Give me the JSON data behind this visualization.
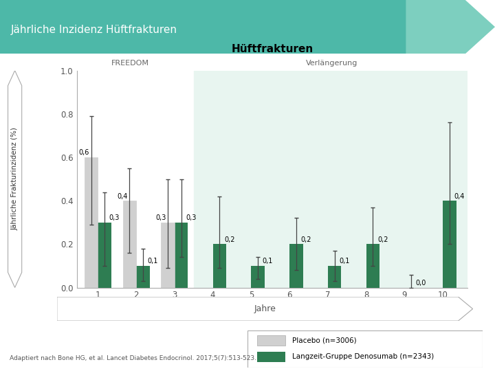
{
  "title_header": "Jährliche Inzidenz Hüftfrakturen",
  "chart_title": "Hüftfrakturen",
  "ylabel": "Jährliche Frakturinzidenz (%)",
  "xlabel_arrow": "Jahre",
  "freedom_label": "FREEDOM",
  "verlaengerung_label": "Verlängerung",
  "years": [
    1,
    2,
    3,
    4,
    5,
    6,
    7,
    8,
    9,
    10
  ],
  "placebo_values": [
    0.6,
    0.4,
    0.3,
    null,
    null,
    null,
    null,
    null,
    null,
    null
  ],
  "placebo_errors_low": [
    0.29,
    0.16,
    0.09,
    null,
    null,
    null,
    null,
    null,
    null,
    null
  ],
  "placebo_errors_high": [
    0.79,
    0.55,
    0.5,
    null,
    null,
    null,
    null,
    null,
    null,
    null
  ],
  "denosumab_values": [
    0.3,
    0.1,
    0.3,
    0.2,
    0.1,
    0.2,
    0.1,
    0.2,
    0.0,
    0.4
  ],
  "denosumab_errors_low": [
    0.1,
    0.03,
    0.14,
    0.09,
    0.04,
    0.08,
    0.03,
    0.1,
    0.0,
    0.2
  ],
  "denosumab_errors_high": [
    0.44,
    0.18,
    0.5,
    0.42,
    0.14,
    0.32,
    0.17,
    0.37,
    0.06,
    0.76
  ],
  "placebo_color": "#d0d0d0",
  "denosumab_color": "#2e7d52",
  "header_bg_color": "#4db8a8",
  "header_arrow_color": "#7dcfbf",
  "verlaengerung_bg_color": "#e8f5f0",
  "ylim": [
    0.0,
    1.0
  ],
  "yticks": [
    0.0,
    0.2,
    0.4,
    0.6,
    0.8,
    1.0
  ],
  "ytick_labels": [
    "0.0",
    "0.2",
    "0.4",
    "0.6",
    "0.8",
    "1.0"
  ],
  "legend_placebo": "Placebo (n=3006)",
  "legend_denosumab": "Langzeit-Gruppe Denosumab (n=2343)",
  "citation": "Adaptiert nach Bone HG, et al. Lancet Diabetes Endocrinol. 2017;5(7):513-523.",
  "bar_width": 0.35
}
